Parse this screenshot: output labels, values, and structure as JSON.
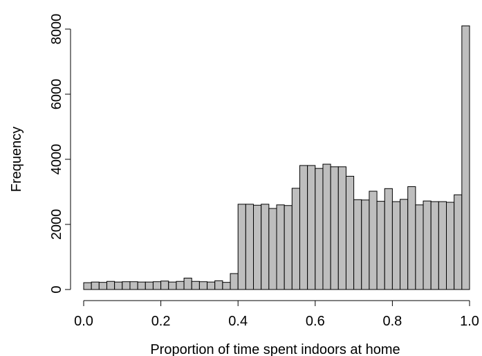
{
  "chart_data": {
    "type": "histogram",
    "xlabel": "Proportion of time spent indoors at home",
    "ylabel": "Frequency",
    "bins": [
      0,
      0.02,
      0.04,
      0.06,
      0.08,
      0.1,
      0.12,
      0.14,
      0.16,
      0.18,
      0.2,
      0.22,
      0.24,
      0.26,
      0.28,
      0.3,
      0.32,
      0.34,
      0.36,
      0.38,
      0.4,
      0.42,
      0.44,
      0.46,
      0.48,
      0.5,
      0.52,
      0.54,
      0.56,
      0.58,
      0.6,
      0.62,
      0.64,
      0.66,
      0.68,
      0.7,
      0.72,
      0.74,
      0.76,
      0.78,
      0.8,
      0.82,
      0.84,
      0.86,
      0.88,
      0.9,
      0.92,
      0.94,
      0.96,
      0.98,
      1
    ],
    "values": [
      210,
      230,
      220,
      250,
      230,
      240,
      240,
      230,
      230,
      240,
      260,
      230,
      250,
      350,
      250,
      240,
      230,
      270,
      220,
      490,
      2620,
      2620,
      2590,
      2620,
      2490,
      2600,
      2580,
      3110,
      3810,
      3810,
      3720,
      3850,
      3770,
      3770,
      3480,
      2760,
      2750,
      3020,
      2710,
      3100,
      2700,
      2770,
      3160,
      2600,
      2720,
      2700,
      2700,
      2680,
      2910,
      8100
    ],
    "color": "#bebebe",
    "xlim": [
      0,
      1
    ],
    "xticks": [
      {
        "value": 0,
        "label": "0.0"
      },
      0.2,
      0.4,
      0.6,
      0.8,
      {
        "value": 1,
        "label": "1.0"
      }
    ],
    "ylim": [
      0,
      8000
    ],
    "yticks": [
      0,
      2000,
      4000,
      6000,
      8000
    ]
  }
}
